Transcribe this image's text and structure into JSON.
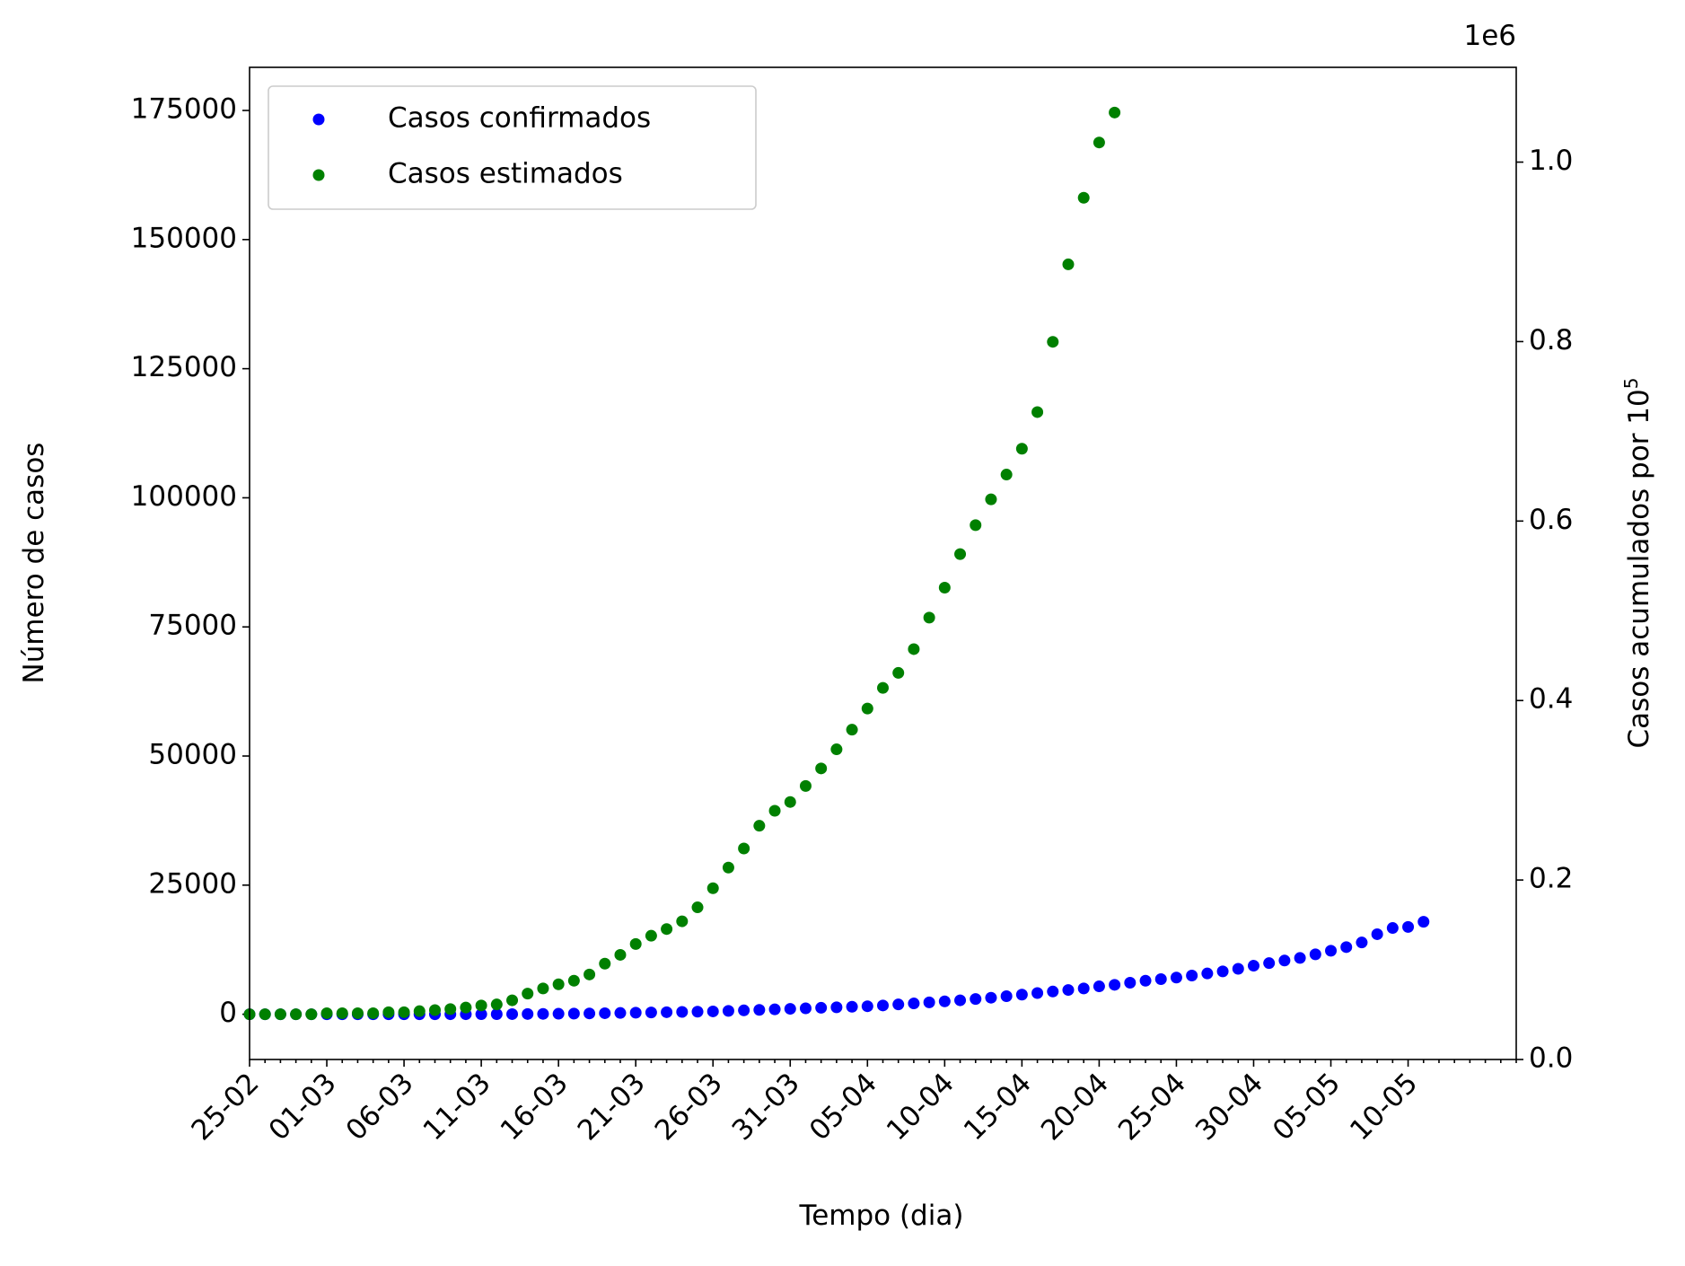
{
  "chart_data": {
    "type": "scatter",
    "xlabel": "Tempo (dia)",
    "ylabel": "Número de casos",
    "y2label": "Casos acumulados por 10",
    "y2label_exponent": "5",
    "y2_offset_label": "1e6",
    "legend": "upper left",
    "categories": [
      "25-02",
      null,
      null,
      null,
      null,
      "01-03",
      null,
      null,
      null,
      null,
      "06-03",
      null,
      null,
      null,
      null,
      "11-03",
      null,
      null,
      null,
      null,
      "16-03",
      null,
      null,
      null,
      null,
      "21-03",
      null,
      null,
      null,
      null,
      "26-03",
      null,
      null,
      null,
      null,
      "31-03",
      null,
      null,
      null,
      null,
      "05-04",
      null,
      null,
      null,
      null,
      "10-04",
      null,
      null,
      null,
      null,
      "15-04",
      null,
      null,
      null,
      null,
      "20-04",
      null,
      null,
      null,
      null,
      "25-04",
      null,
      null,
      null,
      null,
      "30-04",
      null,
      null,
      null,
      null,
      "05-05",
      null,
      null,
      null,
      null,
      "10-05",
      null,
      null,
      null,
      null,
      null,
      null,
      null
    ],
    "series": [
      {
        "name": "Casos confirmados",
        "color": "#0000ff",
        "values": [
          0,
          0,
          0,
          0,
          0,
          0,
          0,
          0,
          0,
          0,
          1,
          2,
          3,
          4,
          8,
          13,
          20,
          30,
          50,
          70,
          100,
          130,
          160,
          200,
          250,
          300,
          350,
          400,
          450,
          500,
          550,
          650,
          750,
          850,
          950,
          1050,
          1150,
          1250,
          1350,
          1450,
          1550,
          1700,
          1900,
          2100,
          2300,
          2500,
          2700,
          2950,
          3200,
          3500,
          3800,
          4100,
          4400,
          4700,
          5000,
          5400,
          5700,
          6100,
          6500,
          6800,
          7100,
          7500,
          7900,
          8300,
          8800,
          9400,
          9900,
          10400,
          10900,
          11600,
          12300,
          13000,
          13900,
          15500,
          16700,
          16900,
          17900,
          null,
          null,
          null,
          null,
          null,
          null
        ]
      },
      {
        "name": "Casos estimados",
        "color": "#008000",
        "values": [
          0,
          0,
          0,
          0,
          0,
          200,
          200,
          200,
          200,
          400,
          400,
          600,
          800,
          1000,
          1300,
          1700,
          1900,
          2700,
          4000,
          5000,
          5800,
          6500,
          7700,
          9800,
          11500,
          13600,
          15200,
          16500,
          18000,
          20700,
          24400,
          28400,
          32100,
          36500,
          39400,
          41100,
          44200,
          47600,
          51300,
          55100,
          59200,
          63200,
          66100,
          70700,
          76800,
          82600,
          89100,
          94700,
          99700,
          104500,
          109500,
          116600,
          130200,
          145200,
          158100,
          168800,
          174600,
          null,
          null,
          null,
          null,
          null,
          null,
          null,
          null,
          null,
          null,
          null,
          null,
          null,
          null,
          null,
          null,
          null,
          null,
          null,
          null,
          null,
          null,
          null,
          null,
          null,
          null
        ]
      }
    ],
    "ylim": [
      -8760,
      183350
    ],
    "yticks": [
      0,
      25000,
      50000,
      75000,
      100000,
      125000,
      150000,
      175000
    ],
    "y2lim": [
      0,
      1105600
    ],
    "y2ticks": [
      {
        "value": 0,
        "label": "0.0"
      },
      {
        "value": 200000,
        "label": "0.2"
      },
      {
        "value": 400000,
        "label": "0.4"
      },
      {
        "value": 600000,
        "label": "0.6"
      },
      {
        "value": 800000,
        "label": "0.8"
      },
      {
        "value": 1000000,
        "label": "1.0"
      }
    ]
  }
}
